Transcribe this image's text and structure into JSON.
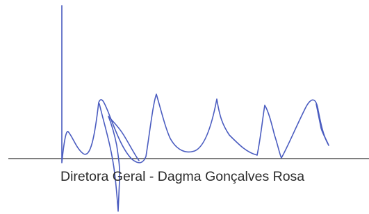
{
  "signature_block": {
    "caption": "Diretora Geral - Dagma Gonçalves Rosa"
  }
}
